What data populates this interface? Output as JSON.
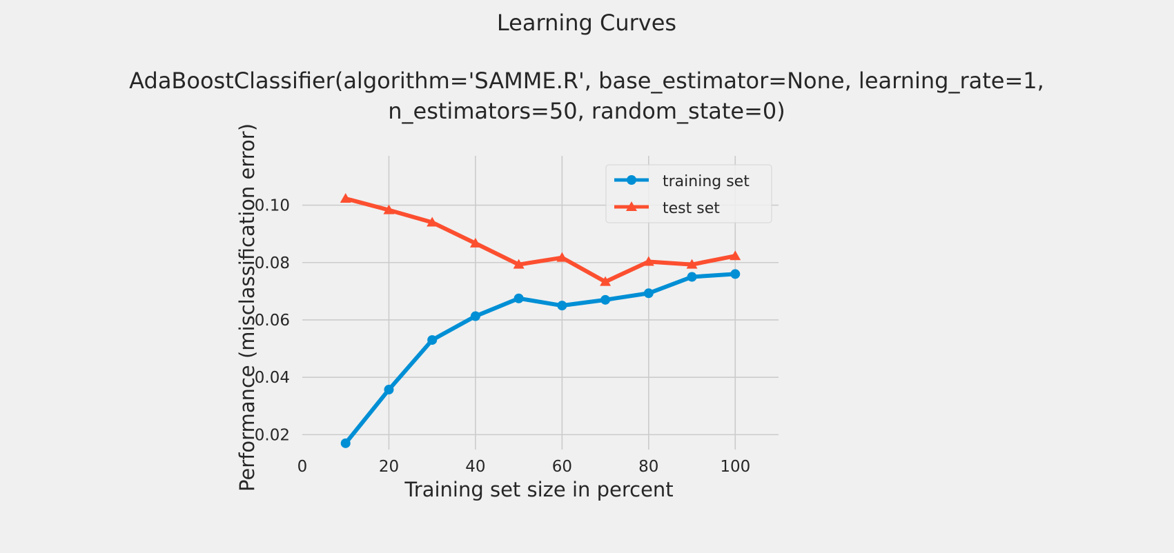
{
  "chart_data": {
    "type": "line",
    "title": "Learning Curves",
    "subtitle_lines": [
      "AdaBoostClassifier(algorithm='SAMME.R', base_estimator=None, learning_rate=1,",
      "n_estimators=50, random_state=0)"
    ],
    "xlabel": "Training set size in percent",
    "ylabel": "Performance (misclassification error)",
    "xlim": [
      0,
      110
    ],
    "ylim": [
      0.0148,
      0.1172
    ],
    "xticks": [
      0,
      20,
      40,
      60,
      80,
      100
    ],
    "yticks": [
      0.02,
      0.04,
      0.06,
      0.08,
      0.1
    ],
    "ytick_labels": [
      "0.02",
      "0.04",
      "0.06",
      "0.08",
      "0.10"
    ],
    "grid": true,
    "legend_position": "top-right",
    "x": [
      10,
      20,
      30,
      40,
      50,
      60,
      70,
      80,
      90,
      100
    ],
    "series": [
      {
        "name": "training set",
        "marker": "circle",
        "color": "#008fd5",
        "values": [
          0.017,
          0.0357,
          0.053,
          0.0613,
          0.0675,
          0.065,
          0.067,
          0.0693,
          0.075,
          0.076
        ]
      },
      {
        "name": "test set",
        "marker": "triangle",
        "color": "#fc4f30",
        "values": [
          0.1023,
          0.0983,
          0.094,
          0.0867,
          0.0793,
          0.0817,
          0.0733,
          0.0803,
          0.0793,
          0.0823
        ]
      }
    ]
  }
}
